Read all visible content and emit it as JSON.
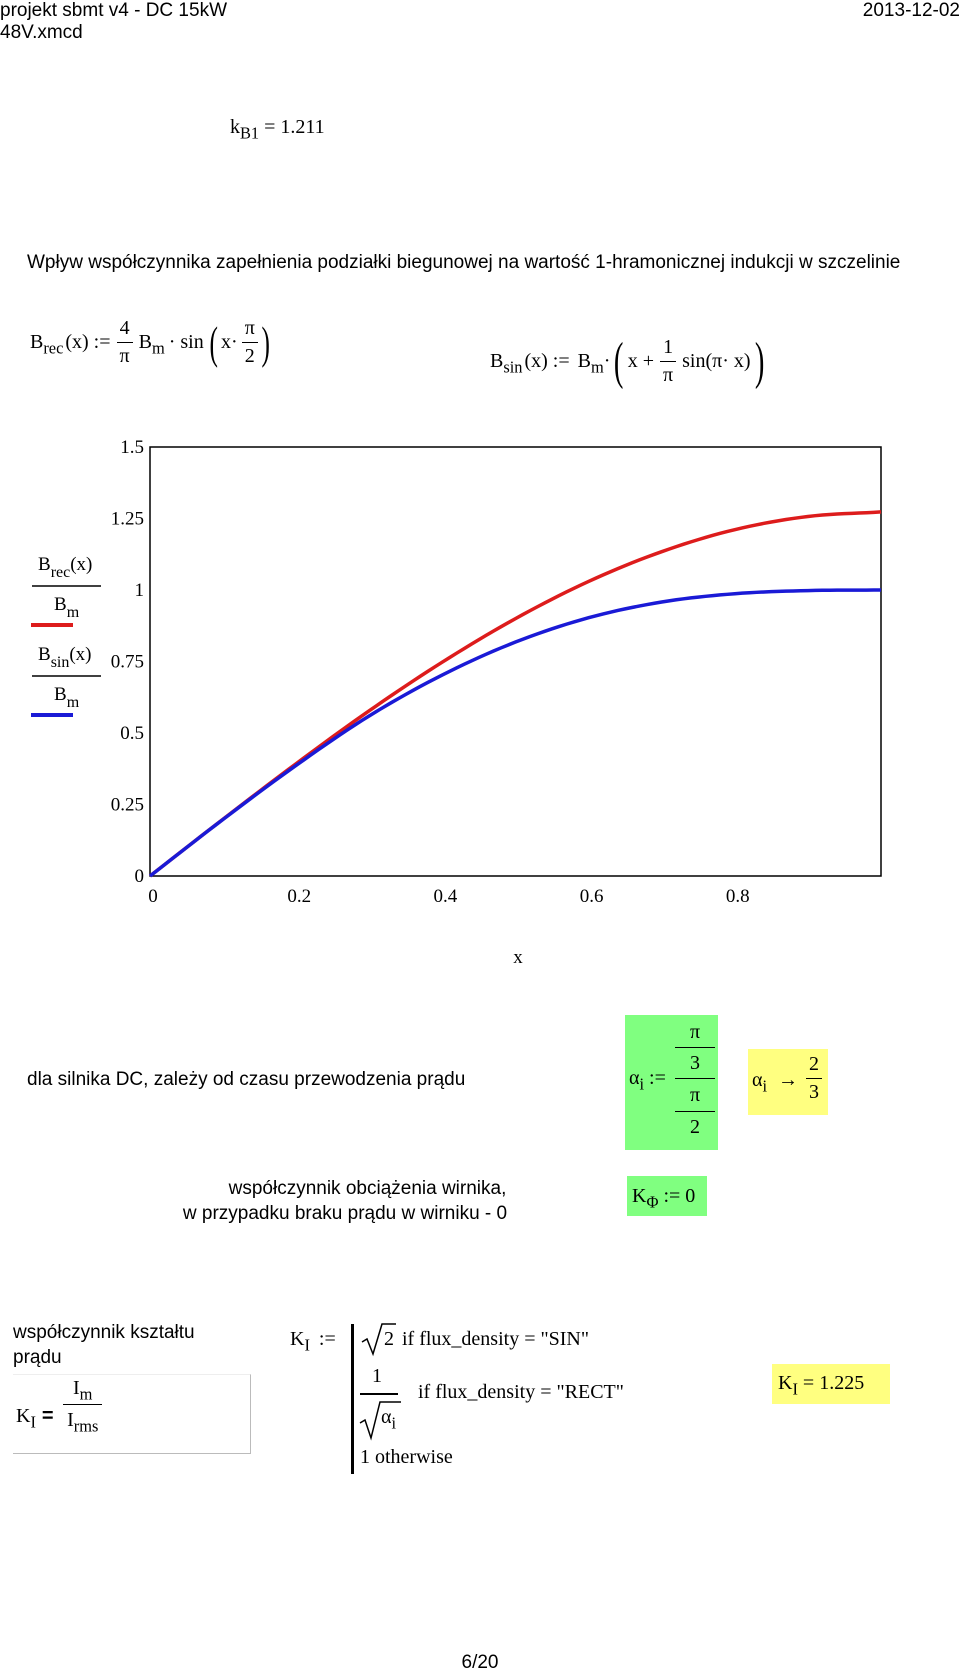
{
  "header": {
    "filename_line1": "projekt sbmt v4 - DC 15kW",
    "filename_line2": "48V.xmcd",
    "date": "2013-12-02"
  },
  "kb1": {
    "var": "k",
    "sub": "B1",
    "value": "= 1.211"
  },
  "section_title": "Wpływ współczynnika zapełnienia podziałki biegunowej na wartość 1-hramonicznej indukcji w szczelinie",
  "eq_brec": {
    "lhs": "B",
    "lhs_sub": "rec",
    "arg": "(x) :=",
    "frac_num": "4",
    "frac_den": "π",
    "b": "B",
    "b_sub": "m",
    "sin": "· sin",
    "x": "x·",
    "inner_num": "π",
    "inner_den": "2"
  },
  "eq_bsin": {
    "lhs": "B",
    "lhs_sub": "sin",
    "arg": "(x) :=",
    "b": "B",
    "b_sub": "m",
    "dot": "·",
    "x_plus": "x +",
    "frac_num": "1",
    "frac_den": "π",
    "sin": "sin(π· x)"
  },
  "chart_data": {
    "type": "line",
    "x": [
      0,
      0.1,
      0.2,
      0.3,
      0.4,
      0.5,
      0.6,
      0.7,
      0.8,
      0.9,
      1.0
    ],
    "series": [
      {
        "color": "#dd1c1c",
        "values": [
          0,
          0.199,
          0.393,
          0.578,
          0.748,
          0.9,
          1.03,
          1.134,
          1.211,
          1.257,
          1.273
        ]
      },
      {
        "color": "#1a1ad6",
        "values": [
          0,
          0.198,
          0.387,
          0.56,
          0.703,
          0.818,
          0.903,
          0.958,
          0.987,
          0.998,
          1.0
        ]
      }
    ],
    "xlim": [
      0,
      1
    ],
    "ylim": [
      0,
      1.5
    ],
    "x_ticks": [
      "0",
      "0.2",
      "0.4",
      "0.6",
      "0.8"
    ],
    "y_ticks": [
      "0",
      "0.25",
      "0.5",
      "0.75",
      "1",
      "1.25",
      "1.5"
    ],
    "xlabel": "x",
    "legend": [
      {
        "num": "B",
        "num_sub": "rec",
        "num_arg": "(x)",
        "den": "B",
        "den_sub": "m",
        "color": "#dd1c1c"
      },
      {
        "num": "B",
        "num_sub": "sin",
        "num_arg": "(x)",
        "den": "B",
        "den_sub": "m",
        "color": "#1a1ad6"
      }
    ],
    "grid": false
  },
  "dc_text": "dla silnika DC, zależy od czasu przewodzenia prądu",
  "alpha_def": {
    "var": "α",
    "sub": "i",
    "assign": ":=",
    "n_num": "π",
    "n_den": "3",
    "d_num": "π",
    "d_den": "2"
  },
  "alpha_result": {
    "var": "α",
    "sub": "i",
    "arrow": "→",
    "num": "2",
    "den": "3"
  },
  "load_text_line1": "współczynnik obciążenia wirnika,",
  "load_text_line2": "w przypadku braku prądu w wirniku - 0",
  "kphi": {
    "var": "K",
    "sub": "Φ",
    "assign": ":= 0"
  },
  "shape_text_line1": "współczynnik kształtu",
  "shape_text_line2": "prądu",
  "ki_def": {
    "var": "K",
    "sub": "I",
    "eq": "=",
    "num": "I",
    "num_sub": "m",
    "den": "I",
    "den_sub": "rms"
  },
  "ki_piecewise": {
    "var": "K",
    "sub": "I",
    "assign": ":=",
    "case1_value": "2",
    "case1_cond": "if  flux_density = \"SIN\"",
    "case2_num": "1",
    "case2_den_var": "α",
    "case2_den_sub": "i",
    "case2_cond": "if  flux_density = \"RECT\"",
    "case3": "1  otherwise"
  },
  "ki_result": {
    "var": "K",
    "sub": "I",
    "value": "= 1.225"
  },
  "page_number": "6/20"
}
